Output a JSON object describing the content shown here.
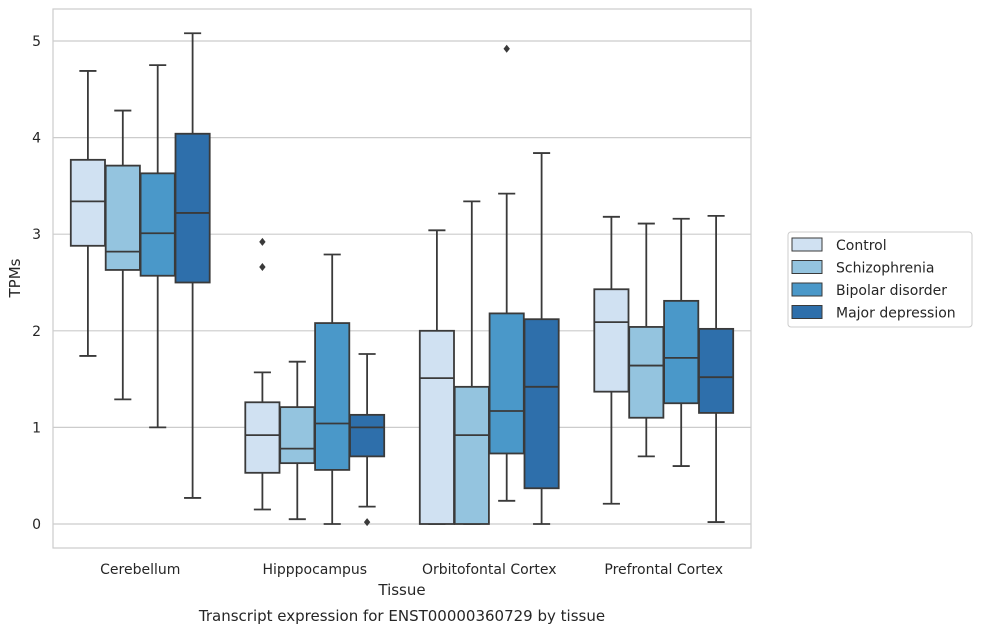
{
  "caption": "Transcript expression for ENST00000360729 by tissue",
  "chart_data": {
    "type": "box",
    "title": "",
    "xlabel": "Tissue",
    "ylabel": "TPMs",
    "ylim": [
      -0.25,
      5.35
    ],
    "yticks": [
      "0",
      "1",
      "2",
      "3",
      "4",
      "5"
    ],
    "grid": true,
    "legend_position": "right",
    "categories": [
      "Cerebellum",
      "Hipppocampus",
      "Orbitofontal Cortex",
      "Prefrontal Cortex"
    ],
    "series": [
      {
        "name": "Control",
        "color": "#d0e1f2",
        "boxes": [
          {
            "min": 1.74,
            "q1": 2.88,
            "median": 3.34,
            "q3": 3.77,
            "max": 4.69,
            "outliers": []
          },
          {
            "min": 0.15,
            "q1": 0.53,
            "median": 0.92,
            "q3": 1.26,
            "max": 1.57,
            "outliers": [
              2.92,
              2.66
            ]
          },
          {
            "min": 0.0,
            "q1": 0.0,
            "median": 1.51,
            "q3": 2.0,
            "max": 3.04,
            "outliers": []
          },
          {
            "min": 0.21,
            "q1": 1.37,
            "median": 2.09,
            "q3": 2.43,
            "max": 3.18,
            "outliers": []
          }
        ]
      },
      {
        "name": "Schizophrenia",
        "color": "#94c4df",
        "boxes": [
          {
            "min": 1.29,
            "q1": 2.63,
            "median": 2.82,
            "q3": 3.71,
            "max": 4.28,
            "outliers": []
          },
          {
            "min": 0.05,
            "q1": 0.63,
            "median": 0.78,
            "q3": 1.21,
            "max": 1.68,
            "outliers": []
          },
          {
            "min": 0.0,
            "q1": 0.0,
            "median": 0.92,
            "q3": 1.42,
            "max": 3.34,
            "outliers": []
          },
          {
            "min": 0.7,
            "q1": 1.1,
            "median": 1.64,
            "q3": 2.04,
            "max": 3.11,
            "outliers": []
          }
        ]
      },
      {
        "name": "Bipolar disorder",
        "color": "#4a98c9",
        "boxes": [
          {
            "min": 1.0,
            "q1": 2.57,
            "median": 3.01,
            "q3": 3.63,
            "max": 4.75,
            "outliers": []
          },
          {
            "min": 0.0,
            "q1": 0.56,
            "median": 1.04,
            "q3": 2.08,
            "max": 2.79,
            "outliers": []
          },
          {
            "min": 0.24,
            "q1": 0.73,
            "median": 1.17,
            "q3": 2.18,
            "max": 3.42,
            "outliers": [
              4.92
            ]
          },
          {
            "min": 0.6,
            "q1": 1.25,
            "median": 1.72,
            "q3": 2.31,
            "max": 3.16,
            "outliers": []
          }
        ]
      },
      {
        "name": "Major depression",
        "color": "#2e6fab",
        "boxes": [
          {
            "min": 0.27,
            "q1": 2.5,
            "median": 3.22,
            "q3": 4.04,
            "max": 5.08,
            "outliers": []
          },
          {
            "min": 0.18,
            "q1": 0.7,
            "median": 1.0,
            "q3": 1.13,
            "max": 1.76,
            "outliers": [
              0.02
            ]
          },
          {
            "min": 0.0,
            "q1": 0.37,
            "median": 1.42,
            "q3": 2.12,
            "max": 3.84,
            "outliers": []
          },
          {
            "min": 0.02,
            "q1": 1.15,
            "median": 1.52,
            "q3": 2.02,
            "max": 3.19,
            "outliers": []
          }
        ]
      }
    ]
  }
}
